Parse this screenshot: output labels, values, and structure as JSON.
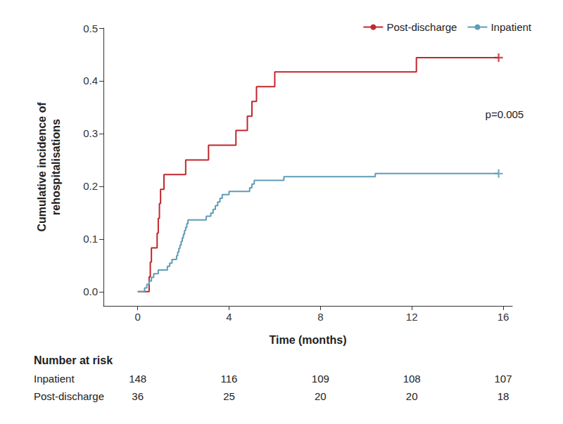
{
  "chart_data": {
    "type": "line",
    "line_style": "step",
    "x_label": "Time (months)",
    "y_label": "Cumulative incidence of\nrehospitalisations",
    "xlim": [
      -1.5,
      16.4
    ],
    "xticks": [
      0,
      4,
      8,
      12,
      16
    ],
    "ylim": [
      -0.027,
      0.5
    ],
    "yticks": [
      {
        "value": 0,
        "label": "0.0"
      },
      {
        "value": 0.1,
        "label": "0.1"
      },
      {
        "value": 0.2,
        "label": "0.2"
      },
      {
        "value": 0.3,
        "label": "0.3"
      },
      {
        "value": 0.4,
        "label": "0.4"
      },
      {
        "value": 0.5,
        "label": "0.5"
      }
    ],
    "grid": false,
    "legend": "upper right",
    "marker": "censor",
    "series": [
      {
        "name": "Post-discharge",
        "color": "#c1272d",
        "x": [
          0,
          0.5,
          0.55,
          0.6,
          0.85,
          0.9,
          0.95,
          1.0,
          1.15,
          2.1,
          3.1,
          4.3,
          4.8,
          5.0,
          5.2,
          6.0,
          12.2,
          15.8
        ],
        "values": [
          0,
          0.028,
          0.056,
          0.083,
          0.111,
          0.139,
          0.167,
          0.194,
          0.222,
          0.25,
          0.278,
          0.306,
          0.333,
          0.361,
          0.389,
          0.417,
          0.444,
          0.444
        ],
        "censored": [
          15.8
        ]
      },
      {
        "name": "Inpatient",
        "color": "#5e9db8",
        "x": [
          0,
          0.3,
          0.4,
          0.5,
          0.6,
          0.7,
          0.9,
          1.3,
          1.4,
          1.5,
          1.7,
          1.75,
          1.8,
          1.85,
          1.9,
          1.95,
          2.0,
          2.05,
          2.1,
          2.15,
          2.2,
          3.0,
          3.2,
          3.3,
          3.4,
          3.5,
          3.6,
          3.7,
          4.0,
          4.9,
          5.0,
          5.1,
          6.4,
          10.4,
          15.8
        ],
        "values": [
          0,
          0.007,
          0.014,
          0.02,
          0.027,
          0.034,
          0.041,
          0.048,
          0.054,
          0.061,
          0.068,
          0.075,
          0.082,
          0.088,
          0.095,
          0.102,
          0.109,
          0.116,
          0.122,
          0.129,
          0.136,
          0.143,
          0.149,
          0.156,
          0.163,
          0.17,
          0.177,
          0.184,
          0.19,
          0.197,
          0.204,
          0.211,
          0.218,
          0.224,
          0.224
        ],
        "censored": [
          15.8
        ]
      }
    ],
    "annotations": [
      {
        "text": "p=0.005",
        "x": 16.9,
        "y": 0.336
      }
    ],
    "risk_table": {
      "title": "Number at risk",
      "x": [
        0,
        4,
        8,
        12,
        16
      ],
      "rows": [
        {
          "name": "Inpatient",
          "values": [
            148,
            116,
            109,
            108,
            107
          ]
        },
        {
          "name": "Post-discharge",
          "values": [
            36,
            25,
            20,
            20,
            18
          ]
        }
      ]
    }
  }
}
